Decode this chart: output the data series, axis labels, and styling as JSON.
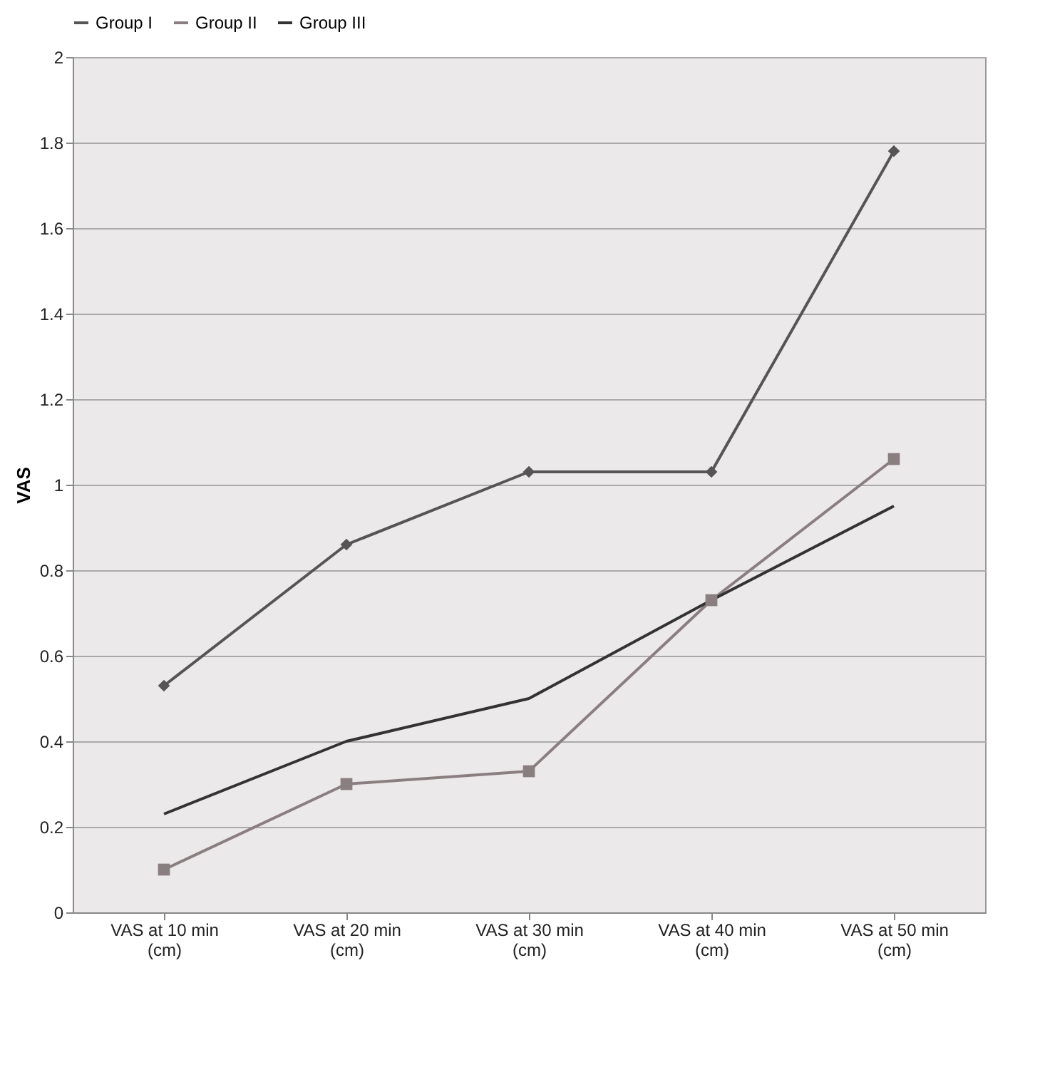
{
  "chart_data": {
    "type": "line",
    "ylabel": "VAS",
    "categories": [
      "VAS at 10 min (cm)",
      "VAS at 20 min (cm)",
      "VAS at 30 min (cm)",
      "VAS at 40 min (cm)",
      "VAS at 50 min (cm)"
    ],
    "series": [
      {
        "name": "Group I",
        "color": "#555555",
        "marker": "diamond",
        "values": [
          0.53,
          0.86,
          1.03,
          1.03,
          1.78
        ]
      },
      {
        "name": "Group II",
        "color": "#8a7f80",
        "marker": "square",
        "values": [
          0.1,
          0.3,
          0.33,
          0.73,
          1.06
        ]
      },
      {
        "name": "Group III",
        "color": "#333333",
        "marker": "none",
        "values": [
          0.23,
          0.4,
          0.5,
          0.73,
          0.95
        ]
      }
    ],
    "ylim": [
      0,
      2
    ],
    "yticks": [
      0,
      0.2,
      0.4,
      0.6,
      0.8,
      1,
      1.2,
      1.4,
      1.6,
      1.8,
      2
    ],
    "grid": "y",
    "legend": "top",
    "line_style": "solid"
  }
}
